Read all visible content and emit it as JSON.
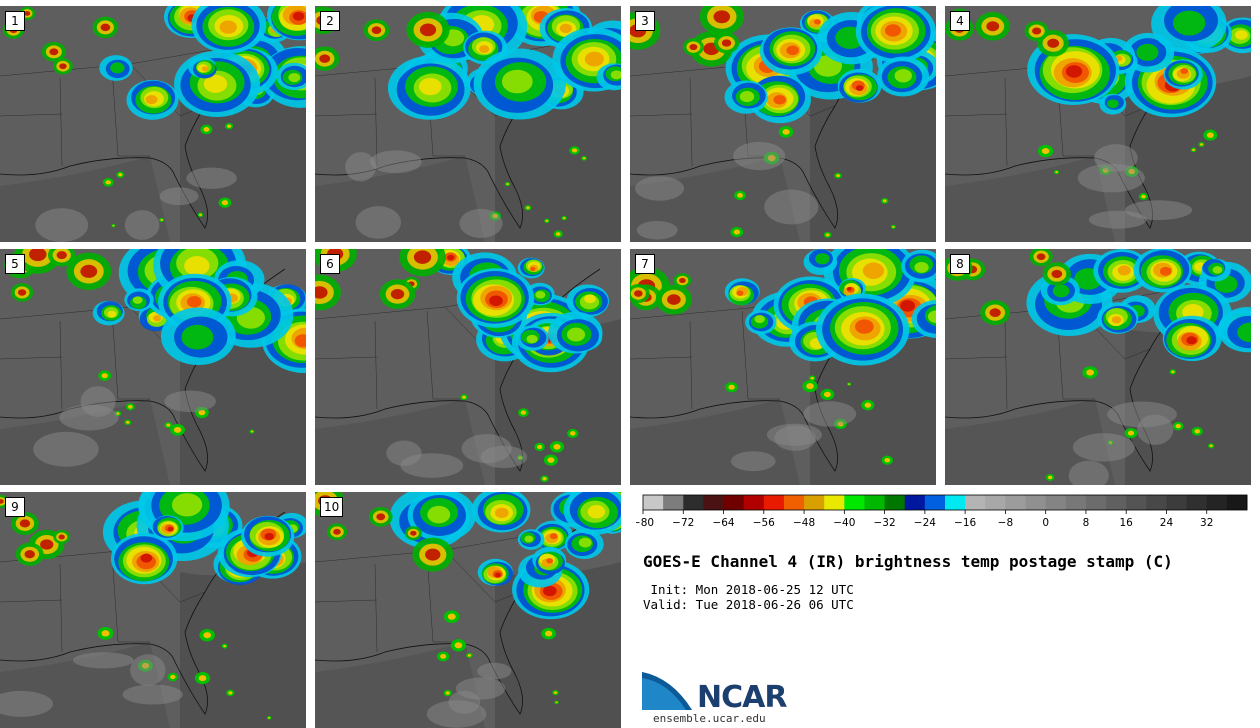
{
  "title": "GOES-E Channel 4 (IR) brightness temp postage stamp (C)",
  "init": " Init: Mon 2018-06-25 12 UTC",
  "valid": "Valid: Tue 2018-06-26 06 UTC",
  "logo": {
    "text": "NCAR",
    "url": "ensemble.ucar.edu"
  },
  "panels": [
    {
      "label": "1"
    },
    {
      "label": "2"
    },
    {
      "label": "3"
    },
    {
      "label": "4"
    },
    {
      "label": "5"
    },
    {
      "label": "6"
    },
    {
      "label": "7"
    },
    {
      "label": "8"
    },
    {
      "label": "9"
    },
    {
      "label": "10"
    }
  ],
  "colorbar": {
    "ticks": [
      "−80",
      "−72",
      "−64",
      "−56",
      "−48",
      "−40",
      "−32",
      "−24",
      "−16",
      "−8",
      "0",
      "8",
      "16",
      "24",
      "32"
    ],
    "colors": [
      "#c8c8c8",
      "#7d7d7d",
      "#2d2d2d",
      "#4a1212",
      "#700000",
      "#b00000",
      "#e81a00",
      "#f06000",
      "#d8a000",
      "#e8e800",
      "#00e800",
      "#00b800",
      "#007800",
      "#0018a0",
      "#0060e0",
      "#00e8f0",
      "#b4b4b4",
      "#a8a8a8",
      "#9c9c9c",
      "#909090",
      "#848484",
      "#787878",
      "#6c6c6c",
      "#606060",
      "#545454",
      "#484848",
      "#3c3c3c",
      "#303030",
      "#242424",
      "#181818"
    ]
  }
}
